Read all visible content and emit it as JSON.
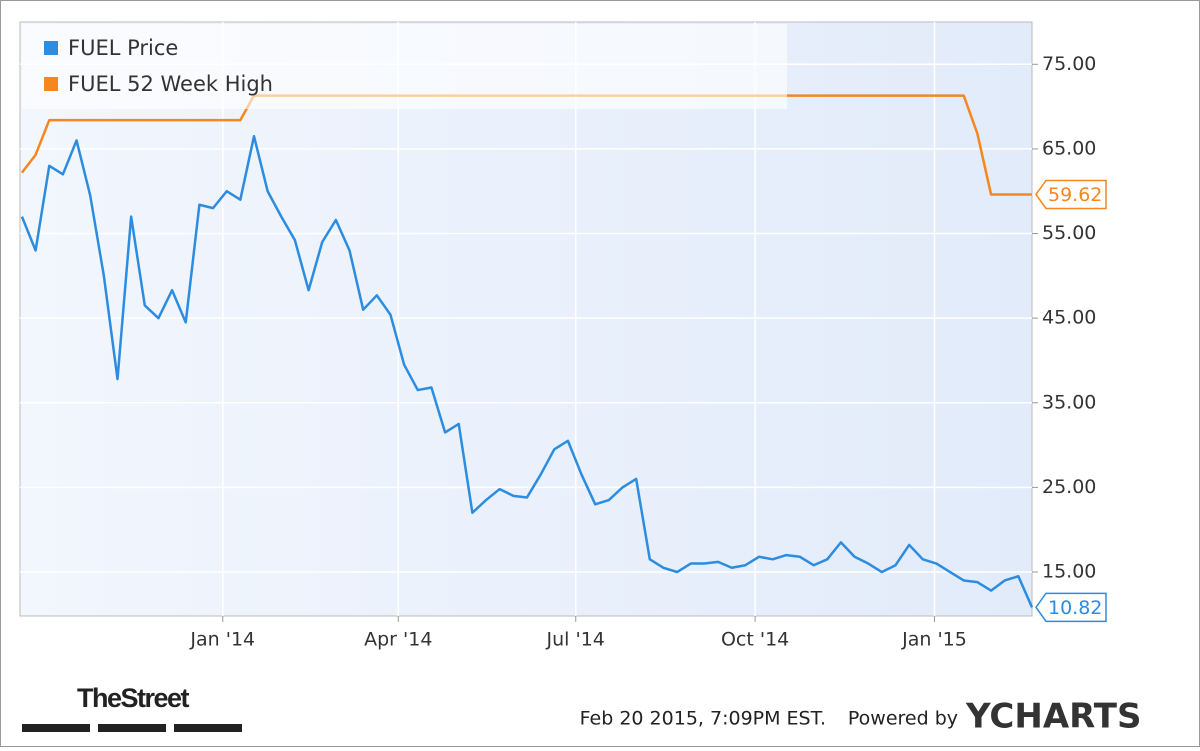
{
  "chart_data": {
    "type": "line",
    "x": [
      "2013-09-20",
      "2013-09-27",
      "2013-10-04",
      "2013-10-11",
      "2013-10-18",
      "2013-10-25",
      "2013-11-01",
      "2013-11-08",
      "2013-11-15",
      "2013-11-22",
      "2013-11-29",
      "2013-12-06",
      "2013-12-13",
      "2013-12-20",
      "2013-12-27",
      "2014-01-03",
      "2014-01-10",
      "2014-01-17",
      "2014-01-24",
      "2014-01-31",
      "2014-02-07",
      "2014-02-14",
      "2014-02-21",
      "2014-02-28",
      "2014-03-07",
      "2014-03-14",
      "2014-03-21",
      "2014-03-28",
      "2014-04-04",
      "2014-04-11",
      "2014-04-18",
      "2014-04-25",
      "2014-05-02",
      "2014-05-09",
      "2014-05-16",
      "2014-05-23",
      "2014-05-30",
      "2014-06-06",
      "2014-06-13",
      "2014-06-20",
      "2014-06-27",
      "2014-07-04",
      "2014-07-11",
      "2014-07-18",
      "2014-07-25",
      "2014-08-01",
      "2014-08-08",
      "2014-08-15",
      "2014-08-22",
      "2014-08-29",
      "2014-09-05",
      "2014-09-12",
      "2014-09-19",
      "2014-09-26",
      "2014-10-03",
      "2014-10-10",
      "2014-10-17",
      "2014-10-24",
      "2014-10-31",
      "2014-11-07",
      "2014-11-14",
      "2014-11-21",
      "2014-11-28",
      "2014-12-05",
      "2014-12-12",
      "2014-12-19",
      "2014-12-26",
      "2015-01-02",
      "2015-01-09",
      "2015-01-16",
      "2015-01-23",
      "2015-01-30",
      "2015-02-06",
      "2015-02-13",
      "2015-02-20"
    ],
    "series": [
      {
        "name": "FUEL Price",
        "color": "#2b8ce0",
        "end_label": "10.82",
        "values": [
          57,
          53,
          63,
          62,
          66,
          59.5,
          50,
          37.8,
          57,
          46.5,
          45,
          48.3,
          44.5,
          58.4,
          58,
          60,
          59,
          66.5,
          60,
          57,
          54.2,
          48.3,
          54,
          56.6,
          53,
          46,
          47.7,
          45.4,
          39.5,
          36.5,
          36.8,
          31.5,
          32.5,
          22,
          23.5,
          24.8,
          24,
          23.8,
          26.5,
          29.5,
          30.5,
          26.5,
          23,
          23.5,
          25,
          26,
          16.5,
          15.5,
          15,
          16,
          16,
          16.2,
          15.5,
          15.8,
          16.8,
          16.5,
          17,
          16.8,
          15.8,
          16.5,
          18.5,
          16.8,
          16,
          15,
          15.8,
          18.2,
          16.5,
          16,
          15,
          14,
          13.8,
          12.8,
          14,
          14.5,
          10.82
        ]
      },
      {
        "name": "FUEL 52 Week High",
        "color": "#f7861d",
        "end_label": "59.62",
        "values": [
          62.2,
          64.3,
          68.4,
          68.4,
          68.4,
          68.4,
          68.4,
          68.4,
          68.4,
          68.4,
          68.4,
          68.4,
          68.4,
          68.4,
          68.4,
          68.4,
          68.4,
          71.3,
          71.3,
          71.3,
          71.3,
          71.3,
          71.3,
          71.3,
          71.3,
          71.3,
          71.3,
          71.3,
          71.3,
          71.3,
          71.3,
          71.3,
          71.3,
          71.3,
          71.3,
          71.3,
          71.3,
          71.3,
          71.3,
          71.3,
          71.3,
          71.3,
          71.3,
          71.3,
          71.3,
          71.3,
          71.3,
          71.3,
          71.3,
          71.3,
          71.3,
          71.3,
          71.3,
          71.3,
          71.3,
          71.3,
          71.3,
          71.3,
          71.3,
          71.3,
          71.3,
          71.3,
          71.3,
          71.3,
          71.3,
          71.3,
          71.3,
          71.3,
          71.3,
          71.3,
          66.8,
          59.62,
          59.62,
          59.62,
          59.62
        ]
      }
    ],
    "xlim": [
      "2013-09-19",
      "2015-02-20"
    ],
    "xticks": [
      {
        "value": "2014-01-01",
        "label": "Jan '14"
      },
      {
        "value": "2014-04-01",
        "label": "Apr '14"
      },
      {
        "value": "2014-07-01",
        "label": "Jul '14"
      },
      {
        "value": "2014-10-01",
        "label": "Oct '14"
      },
      {
        "value": "2015-01-01",
        "label": "Jan '15"
      }
    ],
    "ylim": [
      9.8,
      80
    ],
    "yticks": [
      {
        "value": 15,
        "label": "15.00"
      },
      {
        "value": 25,
        "label": "25.00"
      },
      {
        "value": 35,
        "label": "35.00"
      },
      {
        "value": 45,
        "label": "45.00"
      },
      {
        "value": 55,
        "label": "55.00"
      },
      {
        "value": 65,
        "label": "65.00"
      },
      {
        "value": 75,
        "label": "75.00"
      }
    ],
    "grid": true,
    "legend": "top-left"
  },
  "footer": {
    "timestamp": "Feb 20 2015, 7:09PM EST.",
    "powered_by": "Powered by",
    "brand": "YCHARTS",
    "publisher": "TheStreet"
  }
}
